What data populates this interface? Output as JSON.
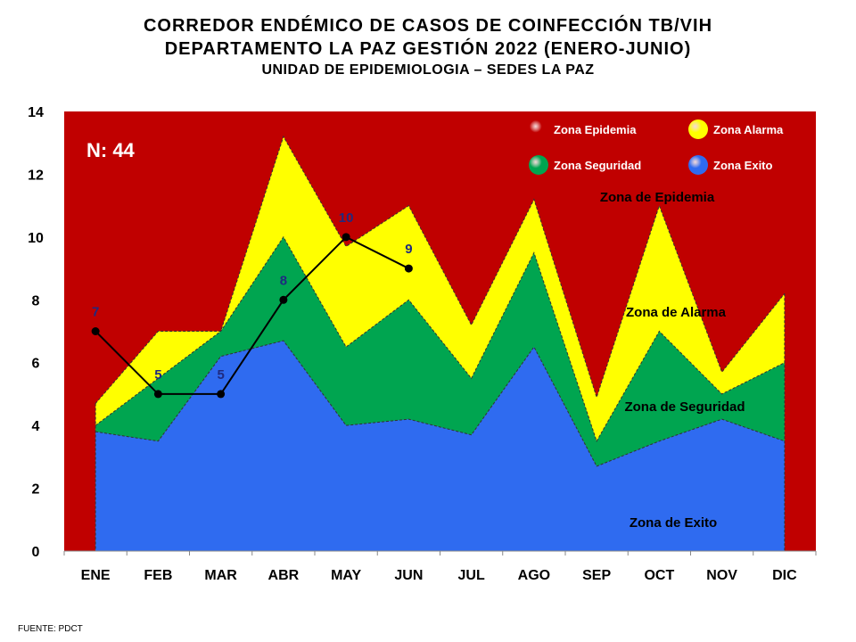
{
  "titles": {
    "line1": "CORREDOR ENDÉMICO DE CASOS DE COINFECCIÓN TB/VIH",
    "line2": "DEPARTAMENTO  LA PAZ GESTIÓN 2022 (ENERO-JUNIO)",
    "line3": "UNIDAD DE EPIDEMIOLOGIA – SEDES LA PAZ"
  },
  "source": "FUENTE:   PDCT",
  "colors": {
    "epidemia": "#C00000",
    "alarma": "#FFFF00",
    "seguridad": "#00A550",
    "exito": "#2F6BF0",
    "cases_line": "#000000",
    "label_blue": "#1F2A80"
  },
  "chart_data": {
    "type": "area",
    "title": "CORREDOR ENDÉMICO DE CASOS DE COINFECCIÓN TB/VIH",
    "xlabel": "",
    "ylabel": "",
    "ylim": [
      0,
      14
    ],
    "yticks": [
      0,
      2,
      4,
      6,
      8,
      10,
      12,
      14
    ],
    "grid": false,
    "categories": [
      "ENE",
      "FEB",
      "MAR",
      "ABR",
      "MAY",
      "JUN",
      "JUL",
      "AGO",
      "SEP",
      "OCT",
      "NOV",
      "DIC"
    ],
    "series": [
      {
        "name": "Zona Exito",
        "values": [
          3.8,
          3.5,
          6.2,
          6.7,
          4.0,
          4.2,
          3.7,
          6.5,
          2.7,
          3.5,
          4.2,
          3.5
        ]
      },
      {
        "name": "Zona Seguridad",
        "values": [
          4.0,
          5.5,
          7.0,
          10.0,
          6.5,
          8.0,
          5.5,
          9.5,
          3.5,
          7.0,
          5.0,
          6.0
        ]
      },
      {
        "name": "Zona Alarma",
        "values": [
          4.7,
          7.0,
          7.0,
          13.2,
          9.7,
          11.0,
          7.2,
          11.2,
          4.9,
          11.0,
          5.7,
          8.2
        ]
      },
      {
        "name": "Zona Epidemia",
        "values": [
          14,
          14,
          14,
          14,
          14,
          14,
          14,
          14,
          14,
          14,
          14,
          14
        ]
      }
    ],
    "cases": {
      "categories": [
        "ENE",
        "FEB",
        "MAR",
        "ABR",
        "MAY",
        "JUN"
      ],
      "values": [
        7,
        5,
        5,
        8,
        10,
        9
      ],
      "labels": [
        "7",
        "5",
        "5",
        "8",
        "10",
        "9"
      ]
    },
    "legend": {
      "placement": "top-right",
      "items": [
        {
          "label": "Zona Epidemia",
          "color": "#C00000"
        },
        {
          "label": "Zona Alarma",
          "color": "#FFFF00"
        },
        {
          "label": "Zona Seguridad",
          "color": "#00A550"
        },
        {
          "label": "Zona Exito",
          "color": "#2F6BF0"
        }
      ]
    },
    "annotations": {
      "n_label": "N: 44",
      "zona_epidemia": "Zona de Epidemia",
      "zona_alarma": "Zona de Alarma",
      "zona_seguridad": "Zona de Seguridad",
      "zona_exito": "Zona de Exito"
    }
  }
}
